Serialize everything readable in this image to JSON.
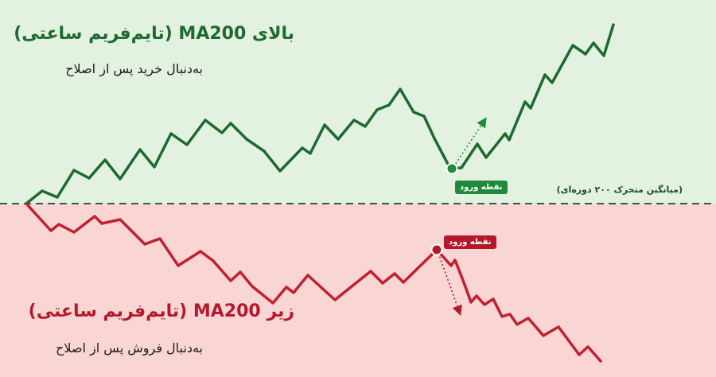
{
  "colors": {
    "bull_bg": "#e3f1e1",
    "bear_bg": "#f9d6d3",
    "bull_line": "#1e6a2e",
    "bear_line": "#c02030",
    "ma_line": "#2e5e3a",
    "entry_green": "#1f8a3b",
    "entry_red": "#b3192a"
  },
  "top": {
    "title": "بالای MA200 (تایم‌فریم ساعتی)",
    "subtitle": "به‌دنبال خرید پس از اصلاح",
    "entry_label": "نقطه ورود"
  },
  "bottom": {
    "title": "زیر MA200 (تایم‌فریم ساعتی)",
    "subtitle": "به‌دنبال فروش پس از اصلاح",
    "entry_label": "نقطه ورود"
  },
  "ma_label": "(میانگین متحرک ۲۰۰ دوره‌ای)"
}
